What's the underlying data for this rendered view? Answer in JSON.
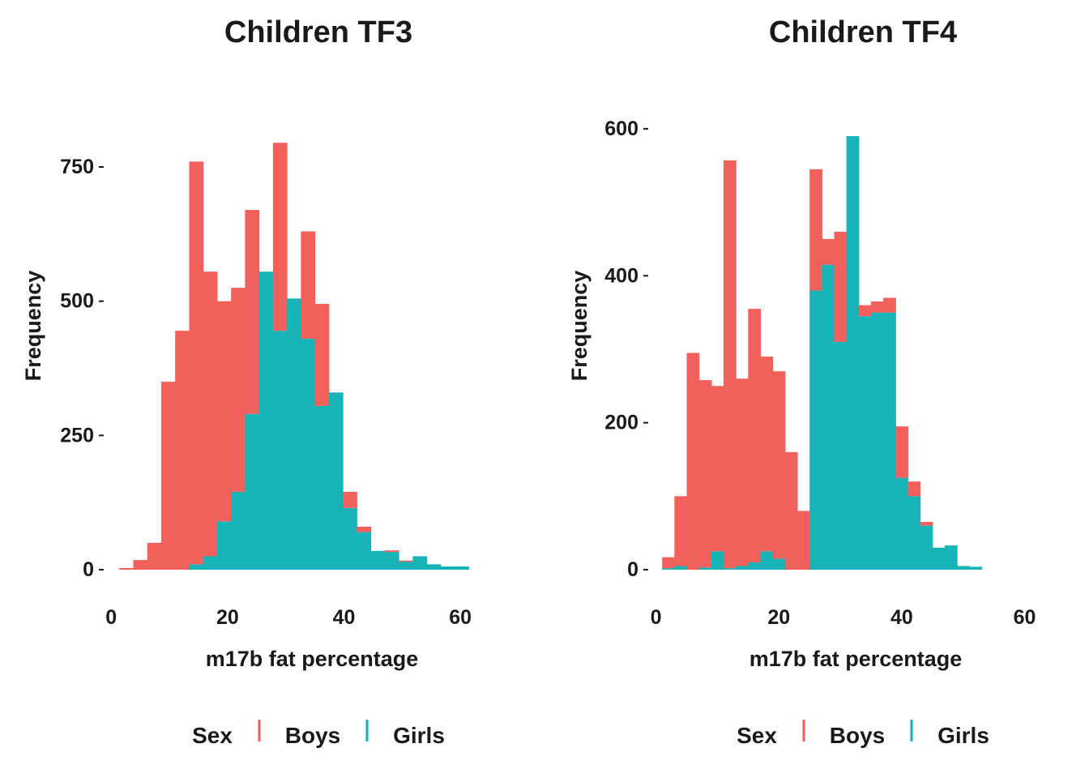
{
  "colors": {
    "boys": "#F2605C",
    "girls": "#18B3B7",
    "text": "#1a1a1a"
  },
  "chart_data": [
    {
      "type": "bar",
      "subtype": "stacked-histogram",
      "title": "Children TF3",
      "xlabel": "m17b fat percentage",
      "ylabel": "Frequency",
      "xlim": [
        -1,
        70
      ],
      "ylim": [
        0,
        910
      ],
      "xticks": [
        0,
        20,
        40,
        60
      ],
      "yticks": [
        0,
        250,
        500,
        750
      ],
      "bin_width": 2.4,
      "bin_start": -1,
      "legend": {
        "title": "Sex",
        "entries": [
          "Boys",
          "Girls"
        ],
        "position": "bottom"
      },
      "series": [
        {
          "name": "Boys",
          "values": [
            0,
            3,
            18,
            50,
            350,
            445,
            750,
            530,
            410,
            380,
            380,
            0,
            350,
            0,
            200,
            190,
            0,
            30,
            10,
            0,
            3,
            2,
            0,
            0,
            0,
            0,
            0,
            0,
            0,
            0
          ]
        },
        {
          "name": "Girls",
          "values": [
            0,
            0,
            0,
            0,
            0,
            0,
            10,
            25,
            90,
            145,
            290,
            555,
            445,
            505,
            430,
            305,
            330,
            115,
            70,
            35,
            33,
            15,
            25,
            10,
            6,
            6,
            0,
            0,
            0,
            0
          ]
        }
      ]
    },
    {
      "type": "bar",
      "subtype": "stacked-histogram",
      "title": "Children TF4",
      "xlabel": "m17b fat percentage",
      "ylabel": "Frequency",
      "xlim": [
        -1,
        66
      ],
      "ylim": [
        0,
        665
      ],
      "xticks": [
        0,
        20,
        40,
        60
      ],
      "yticks": [
        0,
        200,
        400,
        600
      ],
      "bin_width": 2.0,
      "bin_start": 1,
      "legend": {
        "title": "Sex",
        "entries": [
          "Boys",
          "Girls"
        ],
        "position": "bottom"
      },
      "series": [
        {
          "name": "Boys",
          "values": [
            15,
            95,
            295,
            255,
            225,
            555,
            255,
            345,
            265,
            255,
            160,
            80,
            165,
            35,
            150,
            0,
            15,
            15,
            20,
            70,
            20,
            5,
            0,
            0,
            0,
            0,
            0,
            0,
            0,
            0,
            0,
            0
          ]
        },
        {
          "name": "Girls",
          "values": [
            2,
            5,
            0,
            3,
            25,
            2,
            5,
            10,
            25,
            15,
            0,
            0,
            380,
            415,
            310,
            590,
            345,
            350,
            350,
            125,
            100,
            60,
            30,
            33,
            5,
            4,
            0,
            0,
            0,
            0,
            0,
            0
          ]
        }
      ]
    }
  ]
}
